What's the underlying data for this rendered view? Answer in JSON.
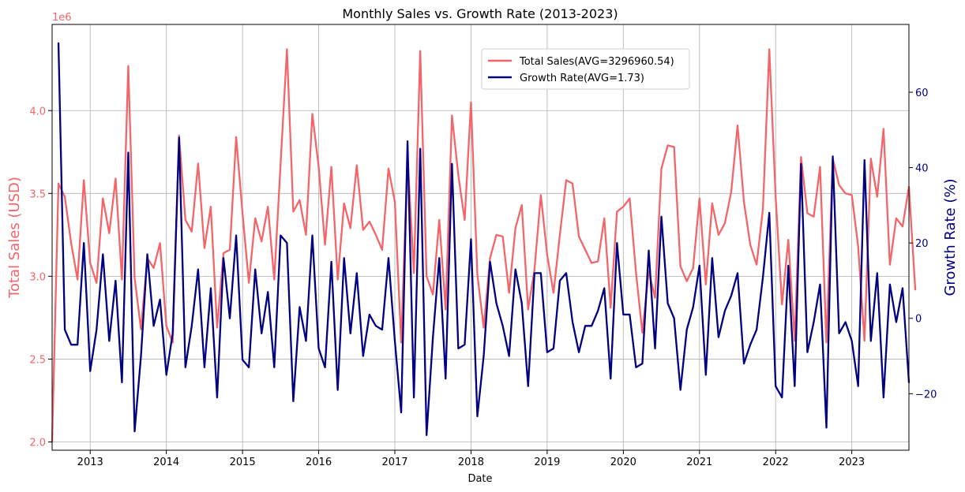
{
  "chart_data": {
    "type": "line",
    "title": "Monthly Sales vs. Growth Rate (2013-2023)",
    "xlabel": "Date",
    "ylabel_left": "Total Sales (USD)",
    "ylabel_right": "Growth Rate (%)",
    "left_axis_offset_text": "1e6",
    "x_tick_labels": [
      "2013",
      "2014",
      "2015",
      "2016",
      "2017",
      "2018",
      "2019",
      "2020",
      "2021",
      "2022",
      "2023"
    ],
    "left_tick_labels": [
      "2.0",
      "2.5",
      "3.0",
      "3.5",
      "4.0"
    ],
    "right_tick_labels": [
      "−20",
      "0",
      "20",
      "40",
      "60"
    ],
    "x_start": "2012-07",
    "x_end": "2023-10",
    "ylim_left": [
      1950000,
      4520000
    ],
    "ylim_right": [
      -35,
      78
    ],
    "grid": true,
    "legend_position": "top-center",
    "colors": {
      "sales": "#f36569",
      "growth": "#000080"
    },
    "series": [
      {
        "name": "Total Sales(AVG=3296960.54)",
        "axis": "left",
        "start_month": "2012-07",
        "values": [
          2000000,
          3560000,
          3480000,
          3200000,
          2980000,
          3580000,
          3080000,
          2960000,
          3470000,
          3260000,
          3590000,
          2980000,
          4270000,
          2990000,
          2680000,
          3110000,
          3050000,
          3200000,
          2700000,
          2600000,
          3850000,
          3340000,
          3270000,
          3680000,
          3170000,
          3420000,
          2690000,
          3140000,
          3160000,
          3840000,
          3380000,
          2960000,
          3350000,
          3210000,
          3420000,
          2980000,
          3680000,
          4370000,
          3390000,
          3460000,
          3250000,
          3980000,
          3660000,
          3190000,
          3660000,
          2980000,
          3440000,
          3290000,
          3670000,
          3280000,
          3330000,
          3250000,
          3160000,
          3650000,
          3450000,
          2600000,
          3730000,
          3020000,
          4360000,
          3000000,
          2890000,
          3340000,
          2800000,
          3970000,
          3610000,
          3340000,
          4050000,
          3010000,
          2690000,
          3110000,
          3250000,
          3240000,
          2900000,
          3290000,
          3430000,
          2800000,
          3040000,
          3490000,
          3130000,
          2900000,
          3250000,
          3580000,
          3560000,
          3240000,
          3160000,
          3080000,
          3090000,
          3350000,
          2810000,
          3390000,
          3420000,
          3470000,
          3020000,
          2660000,
          3030000,
          2870000,
          3650000,
          3790000,
          3780000,
          3060000,
          2970000,
          3050000,
          3470000,
          2950000,
          3440000,
          3250000,
          3320000,
          3510000,
          3910000,
          3450000,
          3190000,
          3070000,
          3410000,
          4370000,
          3480000,
          2830000,
          3220000,
          2610000,
          3720000,
          3380000,
          3360000,
          3660000,
          2600000,
          3710000,
          3550000,
          3500000,
          3490000,
          3180000,
          2610000,
          3710000,
          3480000,
          3890000,
          3070000,
          3350000,
          3300000,
          3540000,
          2920000
        ]
      },
      {
        "name": "Growth Rate(AVG=1.73)",
        "axis": "right",
        "start_month": "2012-08",
        "values": [
          73,
          -3,
          -7,
          -7,
          20,
          -14,
          -3,
          17,
          -6,
          10,
          -17,
          44,
          -30,
          -10,
          17,
          -2,
          5,
          -15,
          -4,
          48,
          -13,
          -2,
          13,
          -13,
          8,
          -21,
          16,
          0,
          22,
          -11,
          -13,
          13,
          -4,
          7,
          -13,
          22,
          20,
          -22,
          3,
          -6,
          22,
          -8,
          -13,
          15,
          -19,
          16,
          -4,
          12,
          -10,
          1,
          -2,
          -3,
          16,
          -6,
          -25,
          47,
          -21,
          45,
          -31,
          -5,
          16,
          -16,
          41,
          -8,
          -7,
          21,
          -26,
          -10,
          15,
          4,
          -2,
          -10,
          13,
          4,
          -18,
          12,
          12,
          -9,
          -8,
          10,
          12,
          -1,
          -9,
          -2,
          -2,
          2,
          8,
          -16,
          20,
          1,
          1,
          -13,
          -12,
          18,
          -8,
          27,
          4,
          0,
          -19,
          -3,
          3,
          14,
          -15,
          16,
          -5,
          2,
          6,
          12,
          -12,
          -7,
          -3,
          11,
          28,
          -18,
          -21,
          14,
          -18,
          41,
          -9,
          -1,
          9,
          -29,
          43,
          -4,
          -1,
          -6,
          -18,
          42,
          -6,
          12,
          -21,
          9,
          -1,
          8,
          -17
        ]
      }
    ]
  }
}
